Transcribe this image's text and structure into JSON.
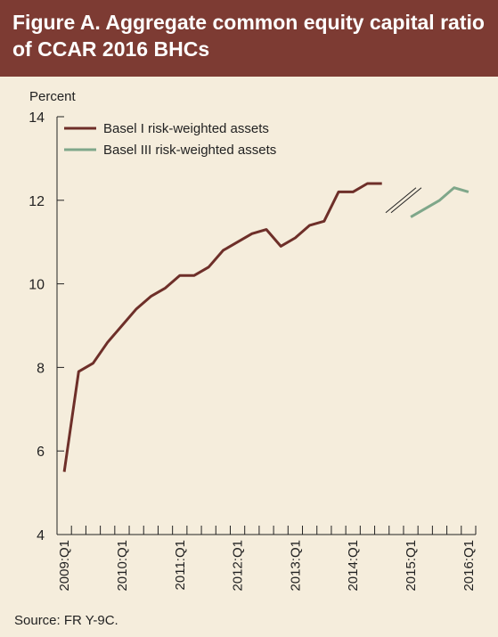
{
  "figure": {
    "title": "Figure A. Aggregate common equity capital ratio of CCAR 2016 BHCs",
    "source": "Source: FR Y-9C."
  },
  "colors": {
    "header_bg": "#7d3b33",
    "background": "#f5eddc",
    "basel1": "#6e2f29",
    "basel3": "#7fa78a"
  },
  "chart_data": {
    "type": "line",
    "ylabel": "Percent",
    "ylim": [
      4,
      14
    ],
    "yticks": [
      "4",
      "6",
      "8",
      "10",
      "12",
      "14"
    ],
    "x_tick_labels": [
      "2009:Q1",
      "2010:Q1",
      "2011:Q1",
      "2012:Q1",
      "2013:Q1",
      "2014:Q1",
      "2015:Q1",
      "2016:Q1"
    ],
    "x_quarters": [
      "2009:Q1",
      "2009:Q2",
      "2009:Q3",
      "2009:Q4",
      "2010:Q1",
      "2010:Q2",
      "2010:Q3",
      "2010:Q4",
      "2011:Q1",
      "2011:Q2",
      "2011:Q3",
      "2011:Q4",
      "2012:Q1",
      "2012:Q2",
      "2012:Q3",
      "2012:Q4",
      "2013:Q1",
      "2013:Q2",
      "2013:Q3",
      "2013:Q4",
      "2014:Q1",
      "2014:Q2",
      "2014:Q3",
      "2014:Q4",
      "2015:Q1",
      "2015:Q2",
      "2015:Q3",
      "2015:Q4",
      "2016:Q1"
    ],
    "series": [
      {
        "name": "Basel I risk-weighted assets",
        "color": "#6e2f29",
        "x": [
          "2009:Q1",
          "2009:Q2",
          "2009:Q3",
          "2009:Q4",
          "2010:Q1",
          "2010:Q2",
          "2010:Q3",
          "2010:Q4",
          "2011:Q1",
          "2011:Q2",
          "2011:Q3",
          "2011:Q4",
          "2012:Q1",
          "2012:Q2",
          "2012:Q3",
          "2012:Q4",
          "2013:Q1",
          "2013:Q2",
          "2013:Q3",
          "2013:Q4",
          "2014:Q1",
          "2014:Q2",
          "2014:Q3",
          "2014:Q4"
        ],
        "values": [
          5.5,
          7.9,
          8.1,
          8.6,
          9.0,
          9.4,
          9.7,
          9.9,
          10.2,
          10.2,
          10.4,
          10.8,
          11.0,
          11.2,
          11.3,
          10.9,
          11.1,
          11.4,
          11.5,
          12.2,
          12.2,
          12.4,
          12.4,
          null
        ]
      },
      {
        "name": "Basel III risk-weighted assets",
        "color": "#7fa78a",
        "x": [
          "2015:Q1",
          "2015:Q2",
          "2015:Q3",
          "2015:Q4",
          "2016:Q1"
        ],
        "values": [
          11.6,
          11.8,
          12.0,
          12.3,
          12.2
        ]
      }
    ],
    "legend_position": "top-left",
    "grid": false
  }
}
